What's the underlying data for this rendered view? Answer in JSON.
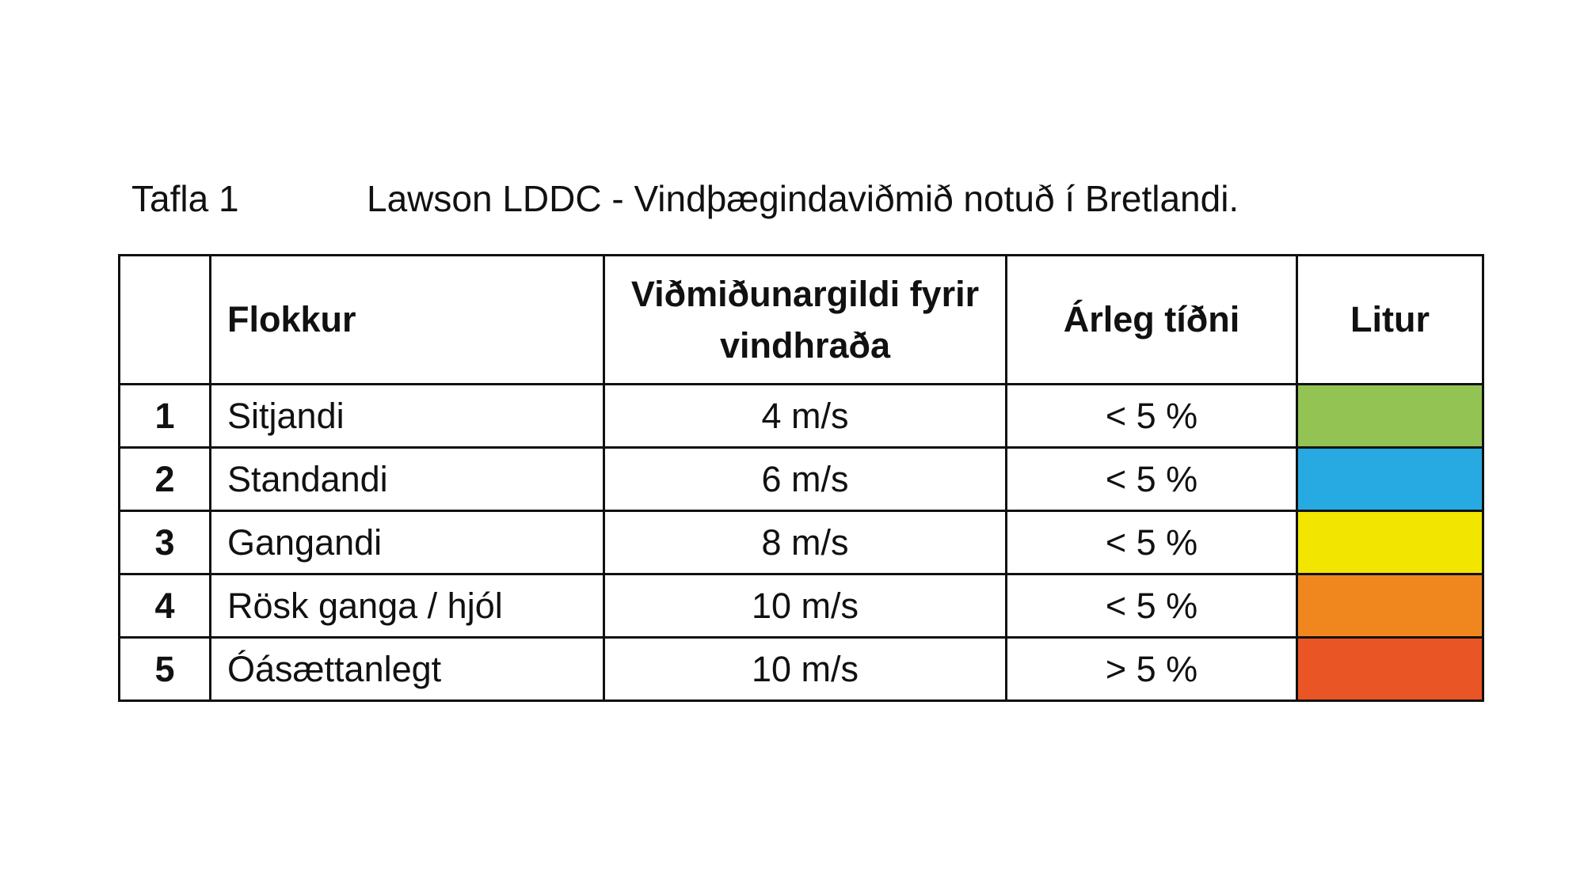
{
  "caption": {
    "label": "Tafla 1",
    "title": "Lawson LDDC - Vindþægindaviðmið notuð í Bretlandi."
  },
  "table": {
    "headers": [
      "Flokkur",
      "Viðmiðunargildi fyrir vindhraða",
      "Árleg tíðni",
      "Litur"
    ],
    "rows": [
      {
        "cells": [
          "1",
          "Sitjandi",
          "4 m/s",
          "< 5 %"
        ],
        "color": "#92c353"
      },
      {
        "cells": [
          "2",
          "Standandi",
          "6 m/s",
          "< 5 %"
        ],
        "color": "#27aae1"
      },
      {
        "cells": [
          "3",
          "Gangandi",
          "8 m/s",
          "< 5 %"
        ],
        "color": "#f2e500"
      },
      {
        "cells": [
          "4",
          "Rösk ganga / hjól",
          "10 m/s",
          "< 5 %"
        ],
        "color": "#f0861e"
      },
      {
        "cells": [
          "5",
          "Óásættanlegt",
          "10 m/s",
          "> 5 %"
        ],
        "color": "#e95525"
      }
    ]
  }
}
